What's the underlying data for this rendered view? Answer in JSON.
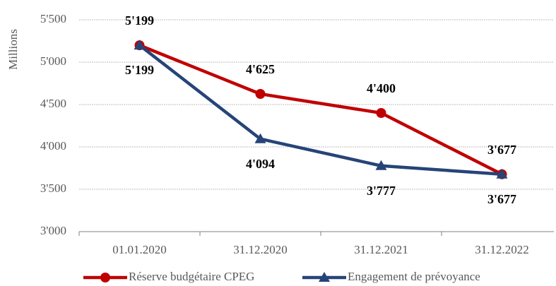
{
  "chart_data": {
    "type": "line",
    "y_label": "Millions",
    "categories": [
      "01.01.2020",
      "31.12.2020",
      "31.12.2021",
      "31.12.2022"
    ],
    "series": [
      {
        "name": "Réserve budgétaire CPEG",
        "color": "#c00000",
        "marker": "circle",
        "values": [
          5199,
          4625,
          4400,
          3677
        ],
        "value_labels": [
          "5'199",
          "4'625",
          "4'400",
          "3'677"
        ]
      },
      {
        "name": "Engagement de prévoyance",
        "color": "#264478",
        "marker": "triangle",
        "values": [
          5199,
          4094,
          3777,
          3677
        ],
        "value_labels": [
          "5'199",
          "4'094",
          "3'777",
          "3'677"
        ]
      }
    ],
    "ylim": [
      3000,
      5500
    ],
    "yticks": [
      {
        "value": 3000,
        "label": "3'000"
      },
      {
        "value": 3500,
        "label": "3'500"
      },
      {
        "value": 4000,
        "label": "4'000"
      },
      {
        "value": 4500,
        "label": "4'500"
      },
      {
        "value": 5000,
        "label": "5'000"
      },
      {
        "value": 5500,
        "label": "5'500"
      }
    ],
    "grid": true,
    "legend": "bottom"
  }
}
